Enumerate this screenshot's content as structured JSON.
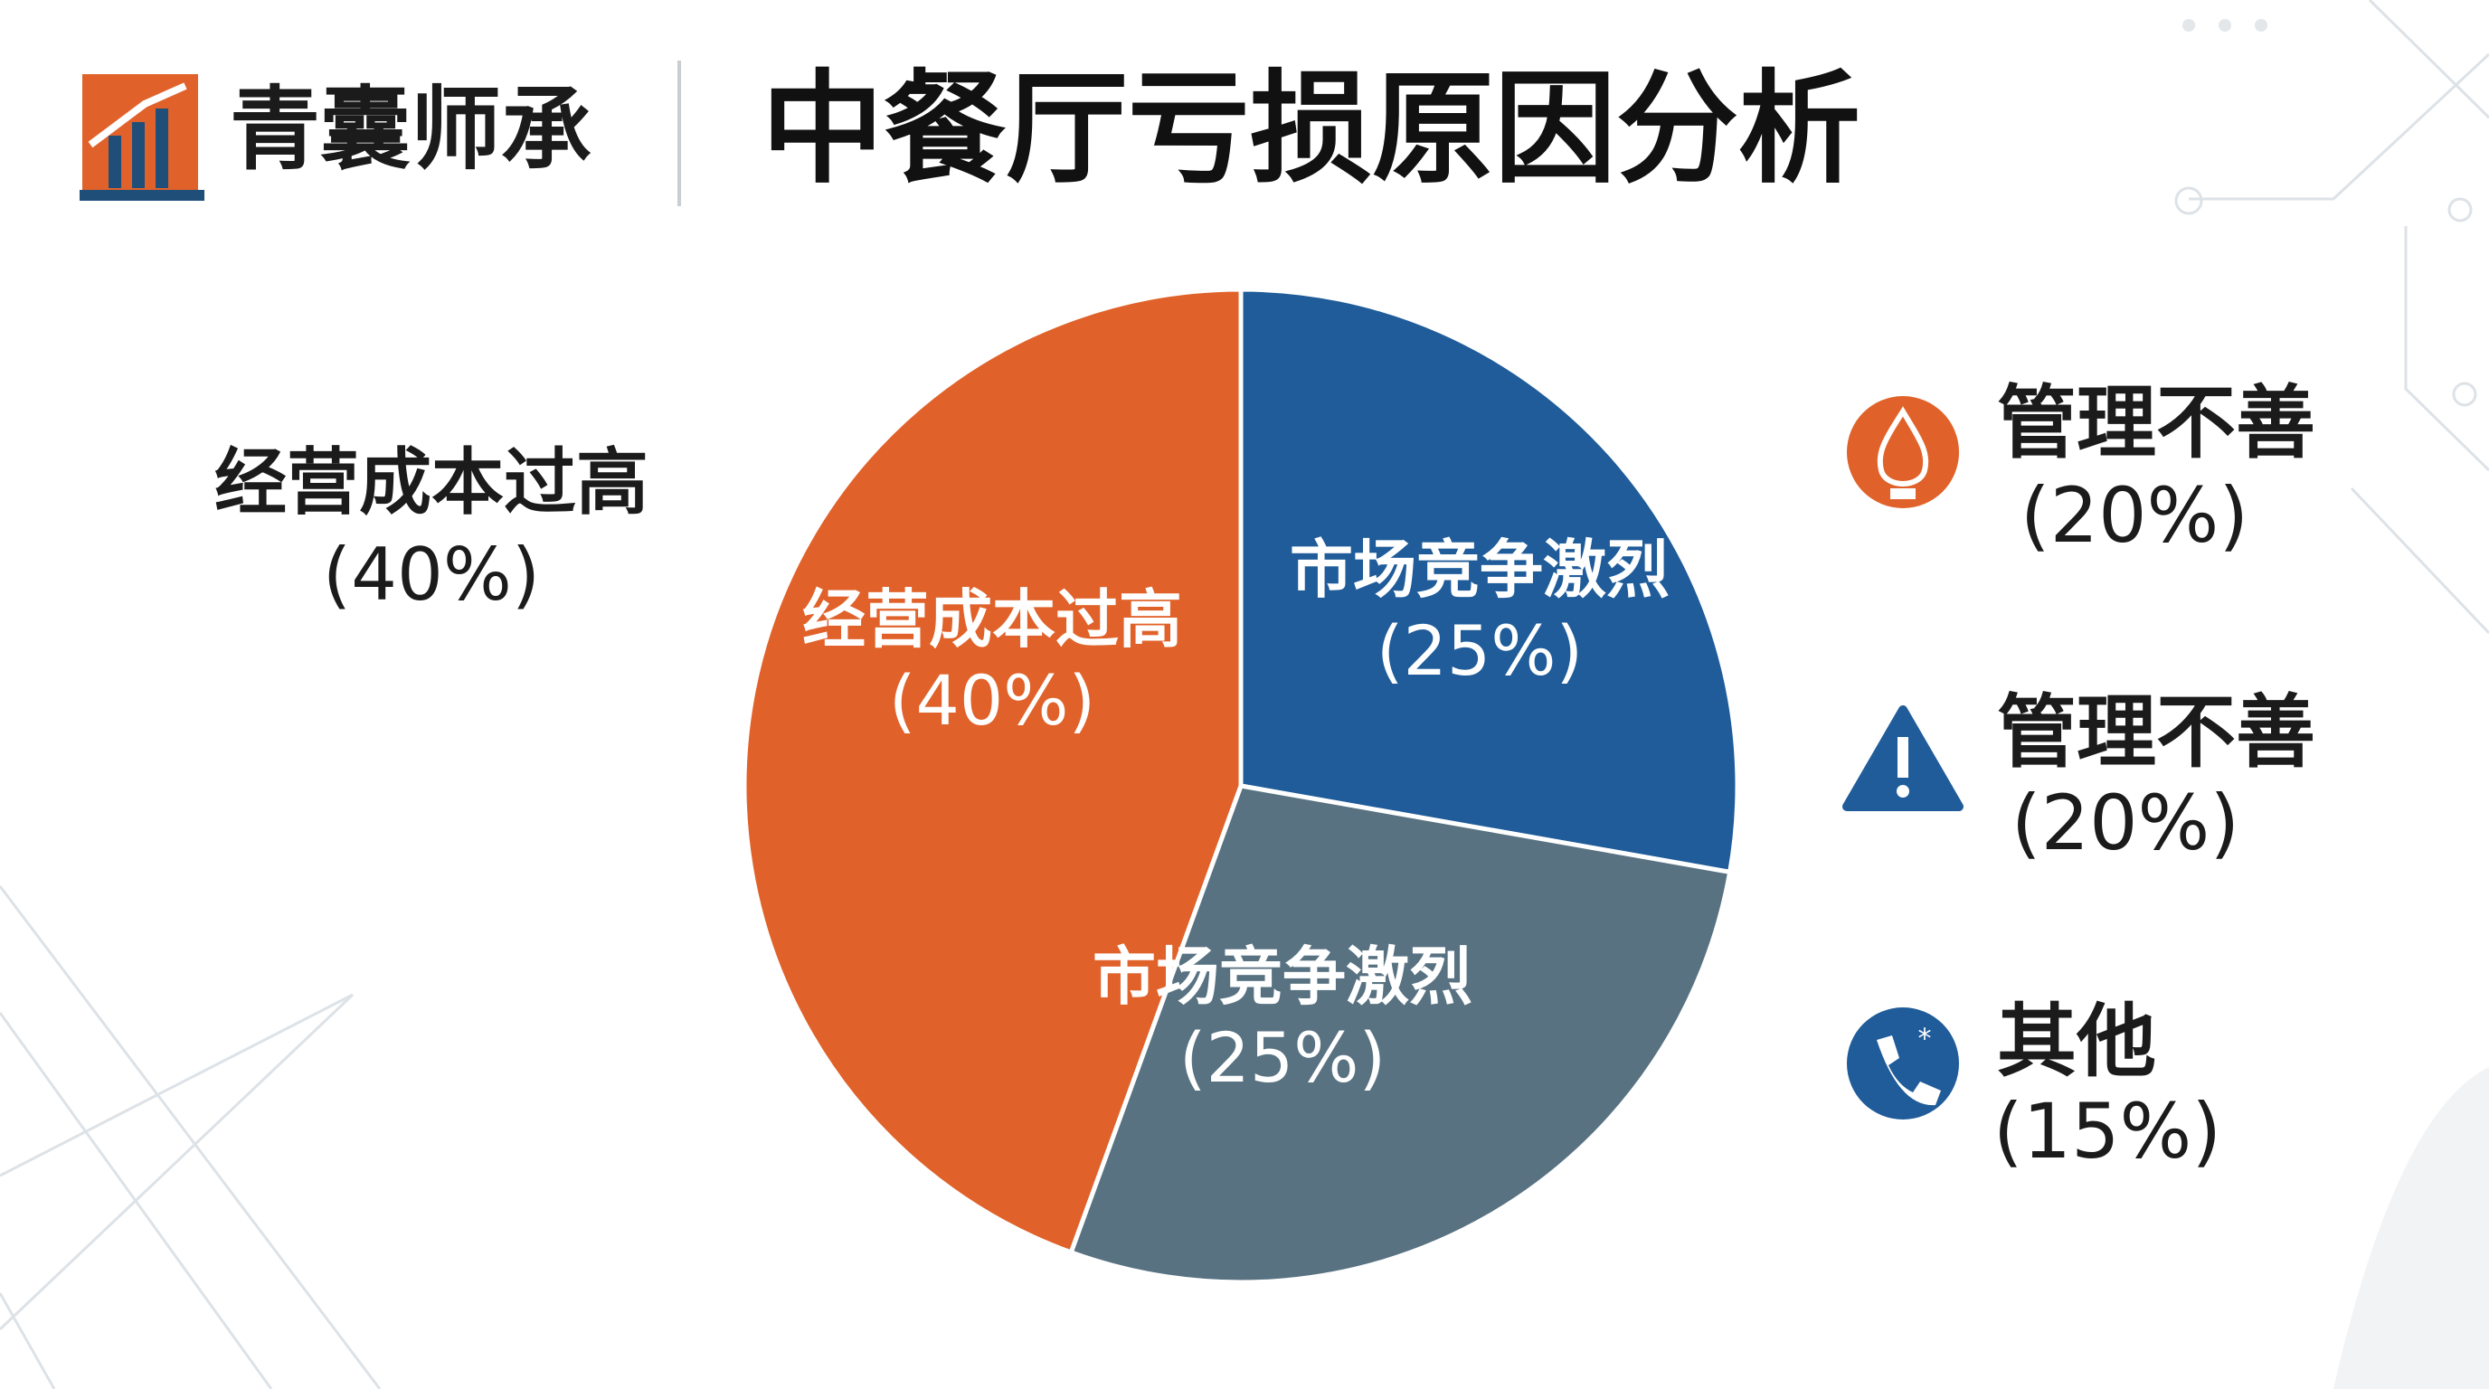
{
  "brand": "青囊师承",
  "chart_data": {
    "type": "pie",
    "title": "中餐厅亏损原因分析",
    "categories": [
      "市场竞争激烈",
      "市场竞争激烈",
      "经营成本过高"
    ],
    "values": [
      25,
      25,
      40
    ],
    "value_labels": [
      "(25%)",
      "(25%)",
      "(40%)"
    ],
    "colors": [
      "#1f5c99",
      "#587282",
      "#e0622a"
    ]
  },
  "side_items": [
    {
      "name": "经营成本过高",
      "value": 40,
      "value_label": "(40%)"
    },
    {
      "name": "管理不善",
      "value": 20,
      "value_label": "(20%)"
    },
    {
      "name": "管理不善",
      "value": 20,
      "value_label": "(20%)"
    },
    {
      "name": "其他",
      "value": 15,
      "value_label": "(15%)"
    }
  ]
}
